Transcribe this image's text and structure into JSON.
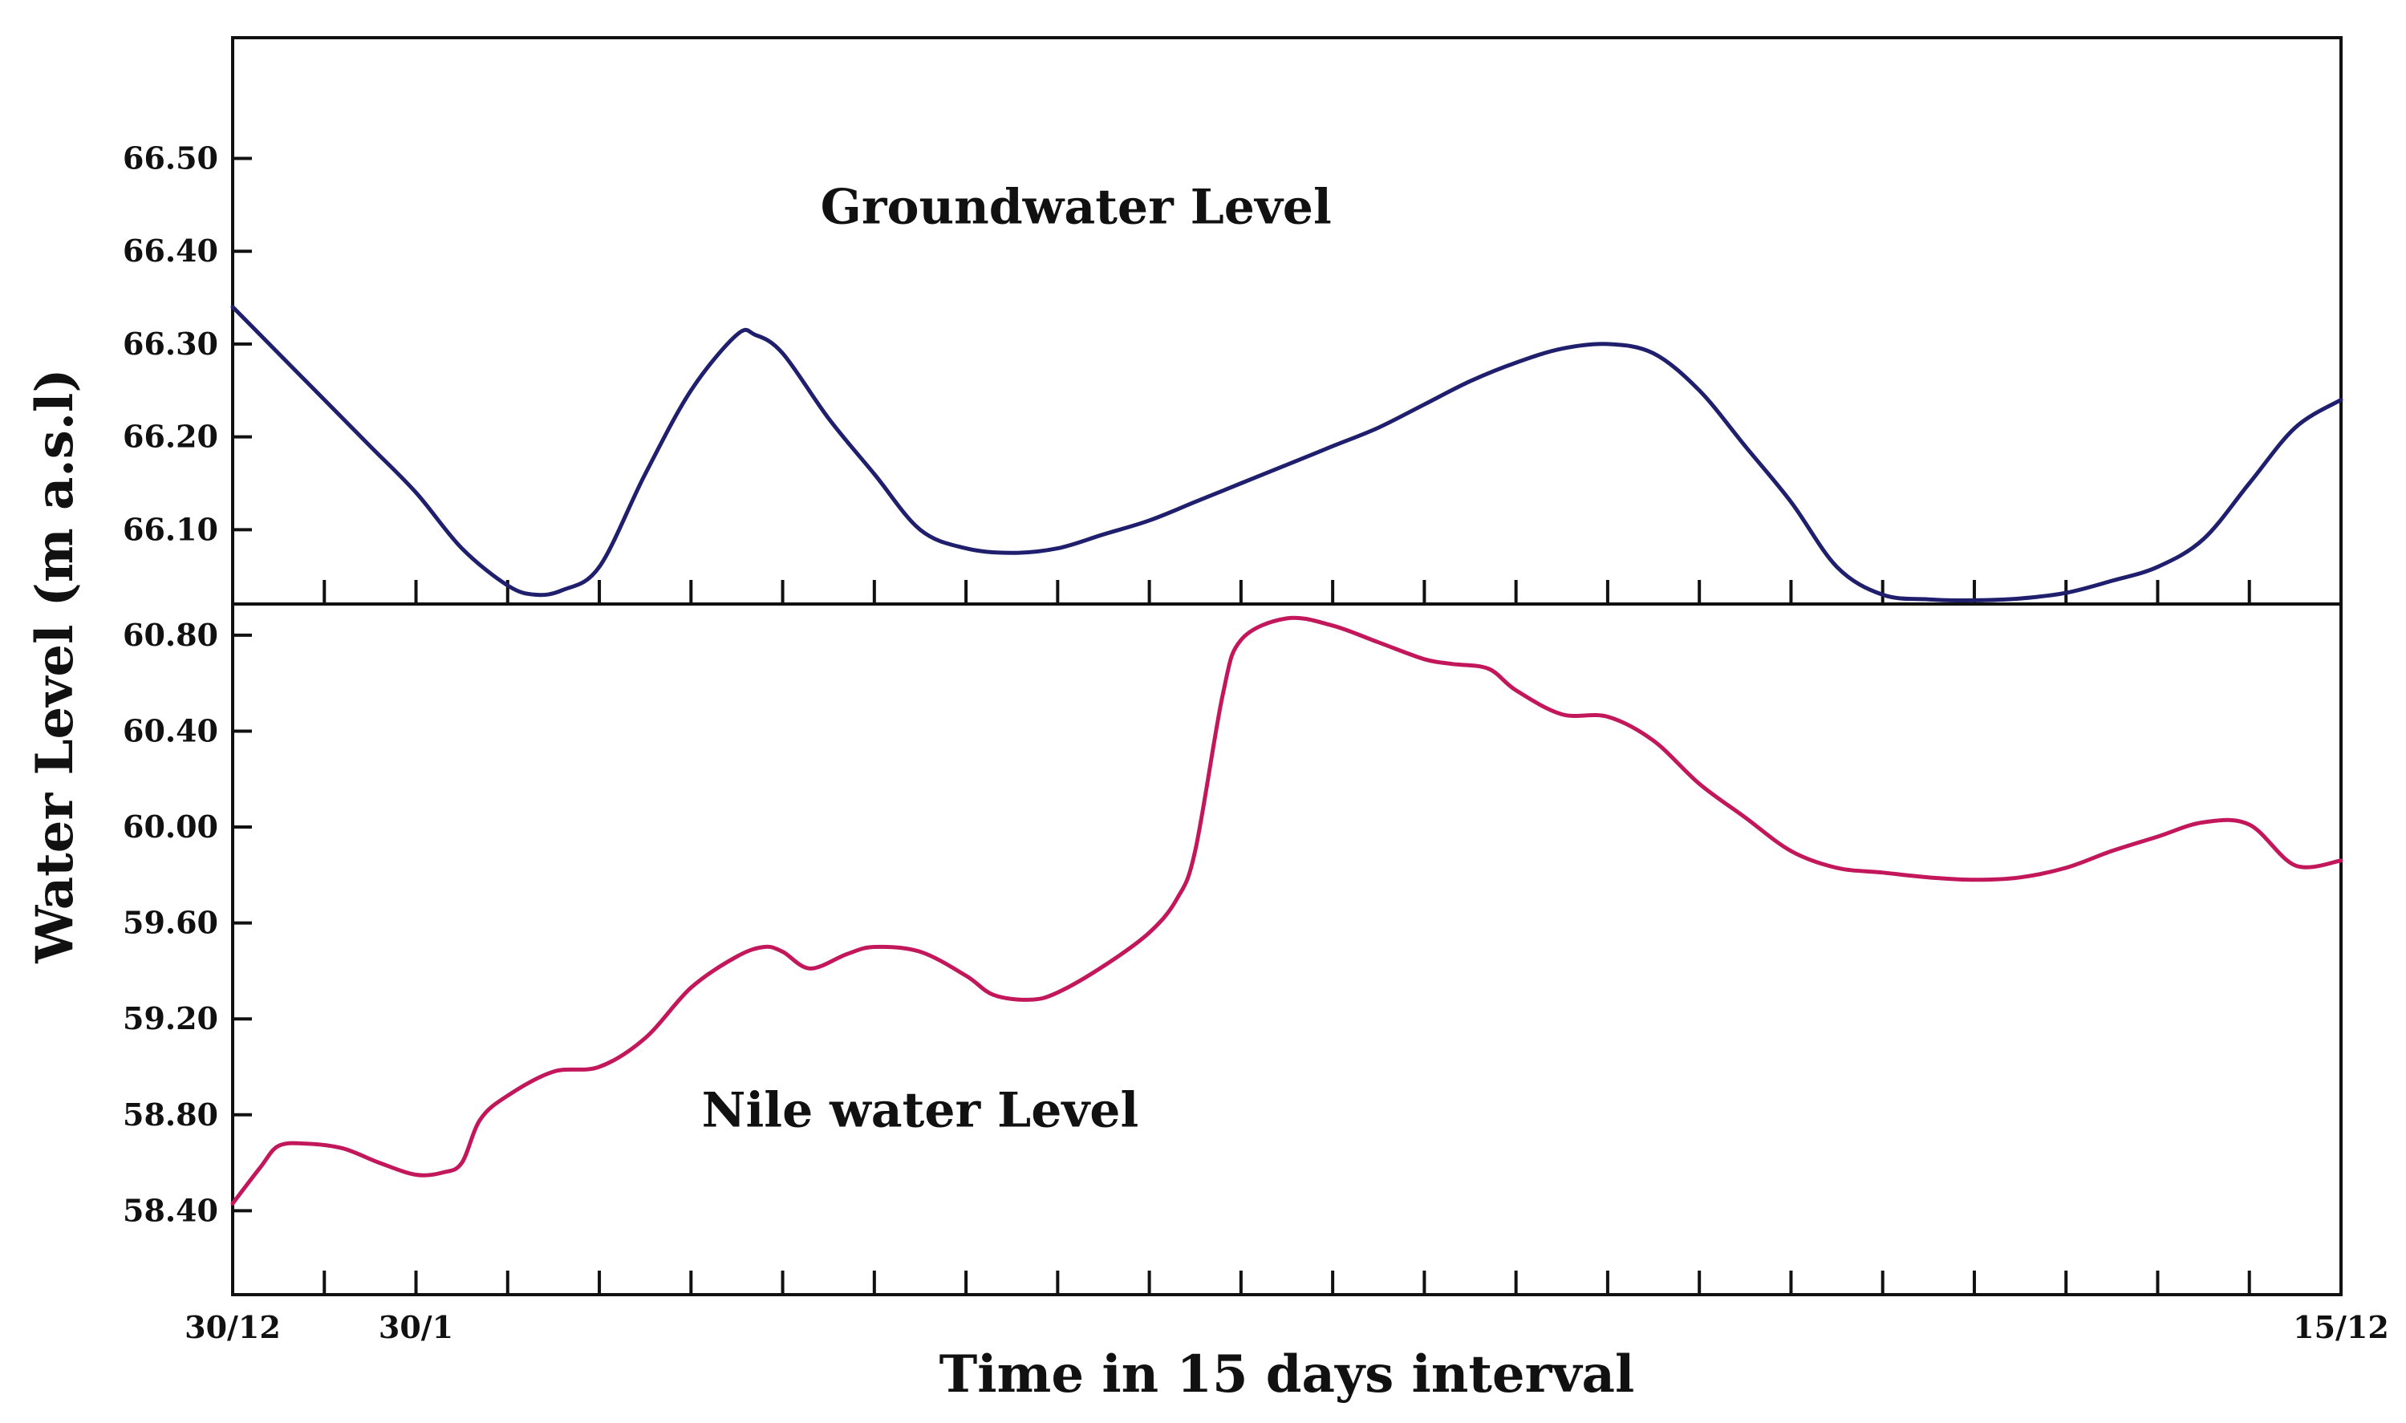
{
  "chart_data": {
    "type": "line",
    "ylabel": "Water Level (m a.s.l)",
    "xlabel": "Time in 15 days interval",
    "x_tick_count": 24,
    "x_tick_labels": [
      {
        "index": 0,
        "label": "30/12"
      },
      {
        "index": 2,
        "label": "30/1"
      },
      {
        "index": 23,
        "label": "15/12"
      }
    ],
    "panels": [
      {
        "name": "groundwater",
        "series_label": "Groundwater Level",
        "color": "#1f1f6e",
        "ylim": [
          66.02,
          66.63
        ],
        "yticks": [
          66.1,
          66.2,
          66.3,
          66.4,
          66.5
        ],
        "ytick_labels": [
          "66.10",
          "66.20",
          "66.30",
          "66.40",
          "66.50"
        ],
        "label_pos": {
          "x": 9.2,
          "y": 66.43
        },
        "x": [
          0,
          0.5,
          1,
          1.5,
          2,
          2.5,
          3,
          3.3,
          3.6,
          4,
          4.5,
          5,
          5.5,
          5.7,
          6,
          6.5,
          7,
          7.5,
          8,
          8.5,
          9,
          9.5,
          10,
          10.5,
          11,
          11.5,
          12,
          12.5,
          13,
          13.5,
          14,
          14.5,
          15,
          15.5,
          16,
          16.5,
          17,
          17.5,
          18,
          18.5,
          19,
          19.5,
          20,
          20.5,
          21,
          21.5,
          22,
          22.5,
          23
        ],
        "y": [
          66.34,
          66.29,
          66.24,
          66.19,
          66.14,
          66.08,
          66.04,
          66.03,
          66.035,
          66.06,
          66.16,
          66.25,
          66.31,
          66.31,
          66.29,
          66.22,
          66.16,
          66.1,
          66.08,
          66.075,
          66.08,
          66.095,
          66.11,
          66.13,
          66.15,
          66.17,
          66.19,
          66.21,
          66.235,
          66.26,
          66.28,
          66.295,
          66.3,
          66.29,
          66.25,
          66.19,
          66.13,
          66.06,
          66.03,
          66.025,
          66.024,
          66.026,
          66.032,
          66.045,
          66.06,
          66.09,
          66.15,
          66.21,
          66.24
        ]
      },
      {
        "name": "nile",
        "series_label": "Nile water Level",
        "color": "#c2185b",
        "ylim": [
          58.05,
          60.93
        ],
        "yticks": [
          58.4,
          58.8,
          59.2,
          59.6,
          60.0,
          60.4,
          60.8
        ],
        "ytick_labels": [
          "58.40",
          "58.80",
          "59.20",
          "59.60",
          "60.00",
          "60.40",
          "60.80"
        ],
        "label_pos": {
          "x": 7.5,
          "y": 58.75
        },
        "x": [
          0,
          0.3,
          0.5,
          0.8,
          1.2,
          1.6,
          2.0,
          2.3,
          2.5,
          2.7,
          3,
          3.5,
          4,
          4.5,
          5,
          5.5,
          5.8,
          6,
          6.3,
          6.7,
          7,
          7.5,
          8,
          8.3,
          8.7,
          9,
          9.5,
          10,
          10.3,
          10.5,
          10.8,
          11,
          11.5,
          12,
          12.5,
          13,
          13.3,
          13.7,
          14,
          14.5,
          15,
          15.5,
          16,
          16.5,
          17,
          17.5,
          18,
          18.5,
          19,
          19.5,
          20,
          20.5,
          21,
          21.5,
          22,
          22.5,
          23
        ],
        "y": [
          58.43,
          58.58,
          58.67,
          58.68,
          58.66,
          58.6,
          58.55,
          58.56,
          58.6,
          58.78,
          58.88,
          58.98,
          59.0,
          59.12,
          59.33,
          59.46,
          59.5,
          59.48,
          59.41,
          59.47,
          59.5,
          59.48,
          59.38,
          59.3,
          59.28,
          59.31,
          59.42,
          59.56,
          59.7,
          59.9,
          60.55,
          60.78,
          60.87,
          60.84,
          60.77,
          60.7,
          60.68,
          60.66,
          60.57,
          60.47,
          60.46,
          60.36,
          60.18,
          60.04,
          59.9,
          59.83,
          59.81,
          59.79,
          59.78,
          59.79,
          59.83,
          59.9,
          59.96,
          60.02,
          60.01,
          59.84,
          59.86
        ]
      }
    ]
  }
}
